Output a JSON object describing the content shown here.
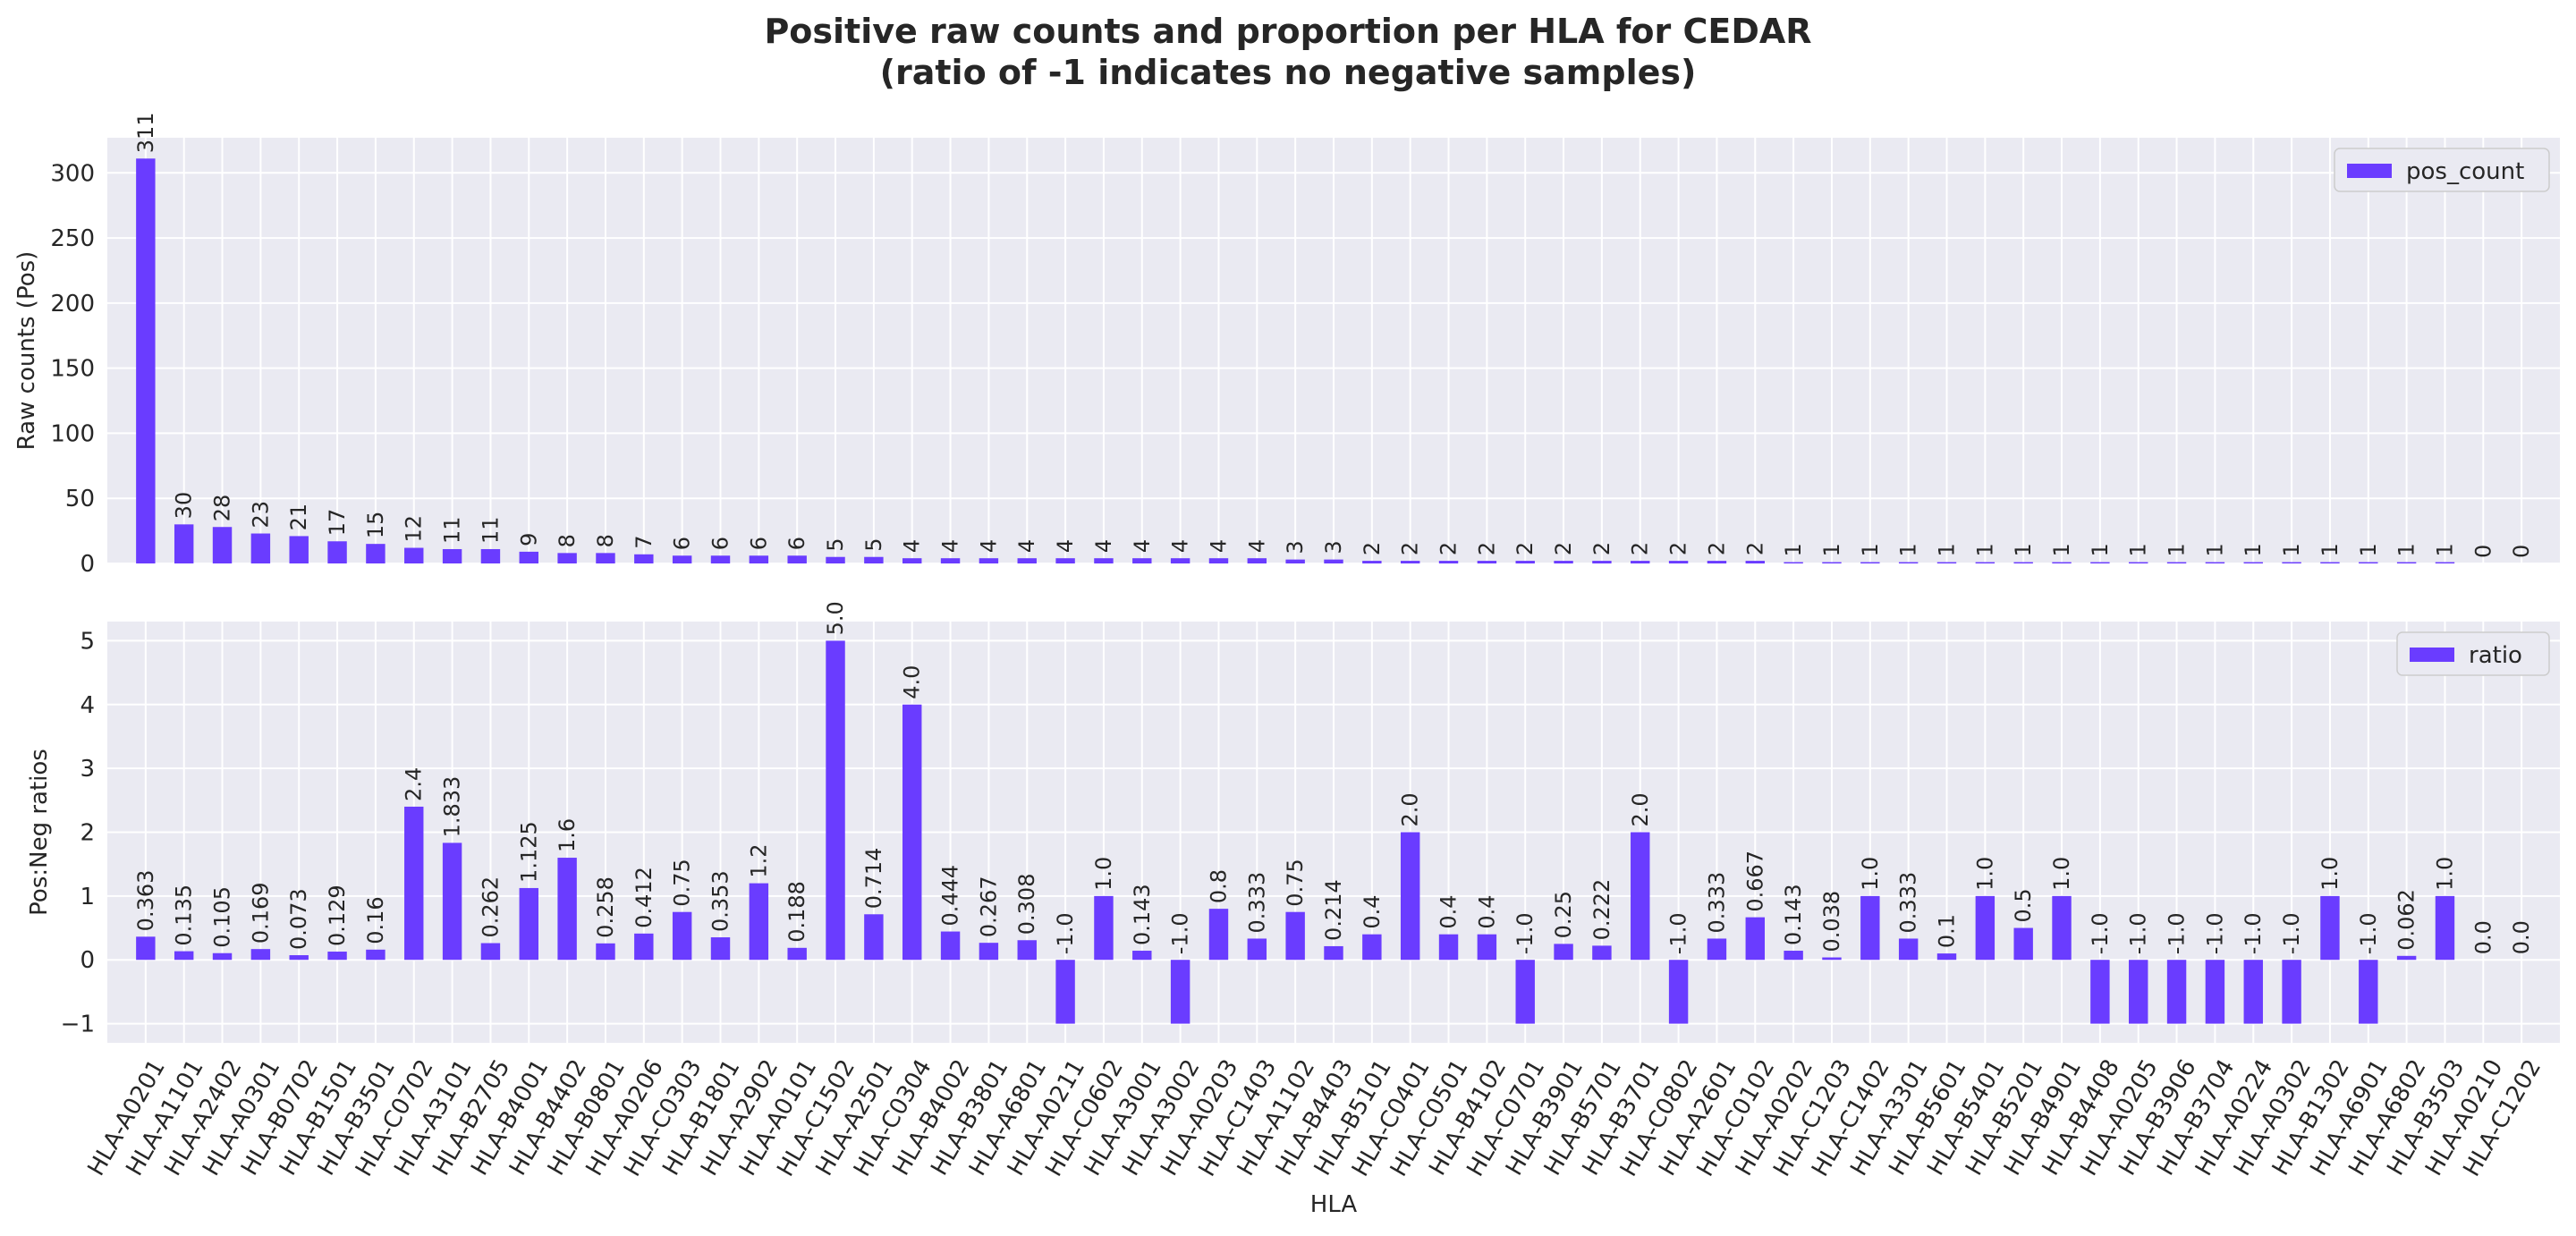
{
  "title_line1": "Positive raw counts and proportion per HLA for CEDAR",
  "title_line2": "(ratio of -1 indicates no negative samples)",
  "colors": {
    "bar": "#6a3cff",
    "background": "#eaeaf2",
    "grid": "#ffffff",
    "text": "#262626"
  },
  "chart_data": [
    {
      "type": "bar",
      "categories": [
        "HLA-A0201",
        "HLA-A1101",
        "HLA-A2402",
        "HLA-A0301",
        "HLA-B0702",
        "HLA-B1501",
        "HLA-B3501",
        "HLA-C0702",
        "HLA-A3101",
        "HLA-B2705",
        "HLA-B4001",
        "HLA-B4402",
        "HLA-B0801",
        "HLA-A0206",
        "HLA-C0303",
        "HLA-B1801",
        "HLA-A2902",
        "HLA-A0101",
        "HLA-C1502",
        "HLA-A2501",
        "HLA-C0304",
        "HLA-B4002",
        "HLA-B3801",
        "HLA-A6801",
        "HLA-A0211",
        "HLA-C0602",
        "HLA-A3001",
        "HLA-A3002",
        "HLA-A0203",
        "HLA-C1403",
        "HLA-A1102",
        "HLA-B4403",
        "HLA-B5101",
        "HLA-C0401",
        "HLA-C0501",
        "HLA-B4102",
        "HLA-C0701",
        "HLA-B3901",
        "HLA-B5701",
        "HLA-B3701",
        "HLA-C0802",
        "HLA-A2601",
        "HLA-C0102",
        "HLA-A0202",
        "HLA-C1203",
        "HLA-C1402",
        "HLA-A3301",
        "HLA-B5601",
        "HLA-B5401",
        "HLA-B5201",
        "HLA-B4901",
        "HLA-B4408",
        "HLA-A0205",
        "HLA-B3906",
        "HLA-B3704",
        "HLA-A0224",
        "HLA-A0302",
        "HLA-B1302",
        "HLA-A6901",
        "HLA-A6802",
        "HLA-B3503",
        "HLA-A0210",
        "HLA-C1202"
      ],
      "series": [
        {
          "name": "pos_count",
          "values": [
            311,
            30,
            28,
            23,
            21,
            17,
            15,
            12,
            11,
            11,
            9,
            8,
            8,
            7,
            6,
            6,
            6,
            6,
            5,
            5,
            4,
            4,
            4,
            4,
            4,
            4,
            4,
            4,
            4,
            4,
            3,
            3,
            2,
            2,
            2,
            2,
            2,
            2,
            2,
            2,
            2,
            2,
            2,
            1,
            1,
            1,
            1,
            1,
            1,
            1,
            1,
            1,
            1,
            1,
            1,
            1,
            1,
            1,
            1,
            1,
            1,
            0,
            0
          ]
        }
      ],
      "data_labels": [
        "311",
        "30",
        "28",
        "23",
        "21",
        "17",
        "15",
        "12",
        "11",
        "11",
        "9",
        "8",
        "8",
        "7",
        "6",
        "6",
        "6",
        "6",
        "5",
        "5",
        "4",
        "4",
        "4",
        "4",
        "4",
        "4",
        "4",
        "4",
        "4",
        "4",
        "3",
        "3",
        "2",
        "2",
        "2",
        "2",
        "2",
        "2",
        "2",
        "2",
        "2",
        "2",
        "2",
        "1",
        "1",
        "1",
        "1",
        "1",
        "1",
        "1",
        "1",
        "1",
        "1",
        "1",
        "1",
        "1",
        "1",
        "1",
        "1",
        "1",
        "1",
        "0",
        "0"
      ],
      "ylabel": "Raw counts (Pos)",
      "ylim": [
        0,
        327
      ],
      "yticks": [
        0,
        50,
        100,
        150,
        200,
        250,
        300
      ],
      "ytick_labels": [
        "0",
        "50",
        "100",
        "150",
        "200",
        "250",
        "300"
      ],
      "legend_position": "top-right",
      "grid": true
    },
    {
      "type": "bar",
      "categories": [
        "HLA-A0201",
        "HLA-A1101",
        "HLA-A2402",
        "HLA-A0301",
        "HLA-B0702",
        "HLA-B1501",
        "HLA-B3501",
        "HLA-C0702",
        "HLA-A3101",
        "HLA-B2705",
        "HLA-B4001",
        "HLA-B4402",
        "HLA-B0801",
        "HLA-A0206",
        "HLA-C0303",
        "HLA-B1801",
        "HLA-A2902",
        "HLA-A0101",
        "HLA-C1502",
        "HLA-A2501",
        "HLA-C0304",
        "HLA-B4002",
        "HLA-B3801",
        "HLA-A6801",
        "HLA-A0211",
        "HLA-C0602",
        "HLA-A3001",
        "HLA-A3002",
        "HLA-A0203",
        "HLA-C1403",
        "HLA-A1102",
        "HLA-B4403",
        "HLA-B5101",
        "HLA-C0401",
        "HLA-C0501",
        "HLA-B4102",
        "HLA-C0701",
        "HLA-B3901",
        "HLA-B5701",
        "HLA-B3701",
        "HLA-C0802",
        "HLA-A2601",
        "HLA-C0102",
        "HLA-A0202",
        "HLA-C1203",
        "HLA-C1402",
        "HLA-A3301",
        "HLA-B5601",
        "HLA-B5401",
        "HLA-B5201",
        "HLA-B4901",
        "HLA-B4408",
        "HLA-A0205",
        "HLA-B3906",
        "HLA-B3704",
        "HLA-A0224",
        "HLA-A0302",
        "HLA-B1302",
        "HLA-A6901",
        "HLA-A6802",
        "HLA-B3503",
        "HLA-A0210",
        "HLA-C1202"
      ],
      "series": [
        {
          "name": "ratio",
          "values": [
            0.363,
            0.135,
            0.105,
            0.169,
            0.073,
            0.129,
            0.16,
            2.4,
            1.833,
            0.262,
            1.125,
            1.6,
            0.258,
            0.412,
            0.75,
            0.353,
            1.2,
            0.188,
            5.0,
            0.714,
            4.0,
            0.444,
            0.267,
            0.308,
            -1.0,
            1.0,
            0.143,
            -1.0,
            0.8,
            0.333,
            0.75,
            0.214,
            0.4,
            2.0,
            0.4,
            0.4,
            -1.0,
            0.25,
            0.222,
            2.0,
            -1.0,
            0.333,
            0.667,
            0.143,
            0.038,
            1.0,
            0.333,
            0.1,
            1.0,
            0.5,
            1.0,
            -1.0,
            -1.0,
            -1.0,
            -1.0,
            -1.0,
            -1.0,
            1.0,
            -1.0,
            0.062,
            1.0,
            0.0,
            0.0
          ]
        }
      ],
      "data_labels": [
        "0.363",
        "0.135",
        "0.105",
        "0.169",
        "0.073",
        "0.129",
        "0.16",
        "2.4",
        "1.833",
        "0.262",
        "1.125",
        "1.6",
        "0.258",
        "0.412",
        "0.75",
        "0.353",
        "1.2",
        "0.188",
        "5.0",
        "0.714",
        "4.0",
        "0.444",
        "0.267",
        "0.308",
        "-1.0",
        "1.0",
        "0.143",
        "-1.0",
        "0.8",
        "0.333",
        "0.75",
        "0.214",
        "0.4",
        "2.0",
        "0.4",
        "0.4",
        "-1.0",
        "0.25",
        "0.222",
        "2.0",
        "-1.0",
        "0.333",
        "0.667",
        "0.143",
        "0.038",
        "1.0",
        "0.333",
        "0.1",
        "1.0",
        "0.5",
        "1.0",
        "-1.0",
        "-1.0",
        "-1.0",
        "-1.0",
        "-1.0",
        "-1.0",
        "1.0",
        "-1.0",
        "0.062",
        "1.0",
        "0.0",
        "0.0"
      ],
      "ylabel": "Pos:Neg ratios",
      "xlabel": "HLA",
      "ylim": [
        -1.3,
        5.3
      ],
      "yticks": [
        -1,
        0,
        1,
        2,
        3,
        4,
        5
      ],
      "ytick_labels": [
        "−1",
        "0",
        "1",
        "2",
        "3",
        "4",
        "5"
      ],
      "legend_position": "top-right",
      "grid": true
    }
  ]
}
